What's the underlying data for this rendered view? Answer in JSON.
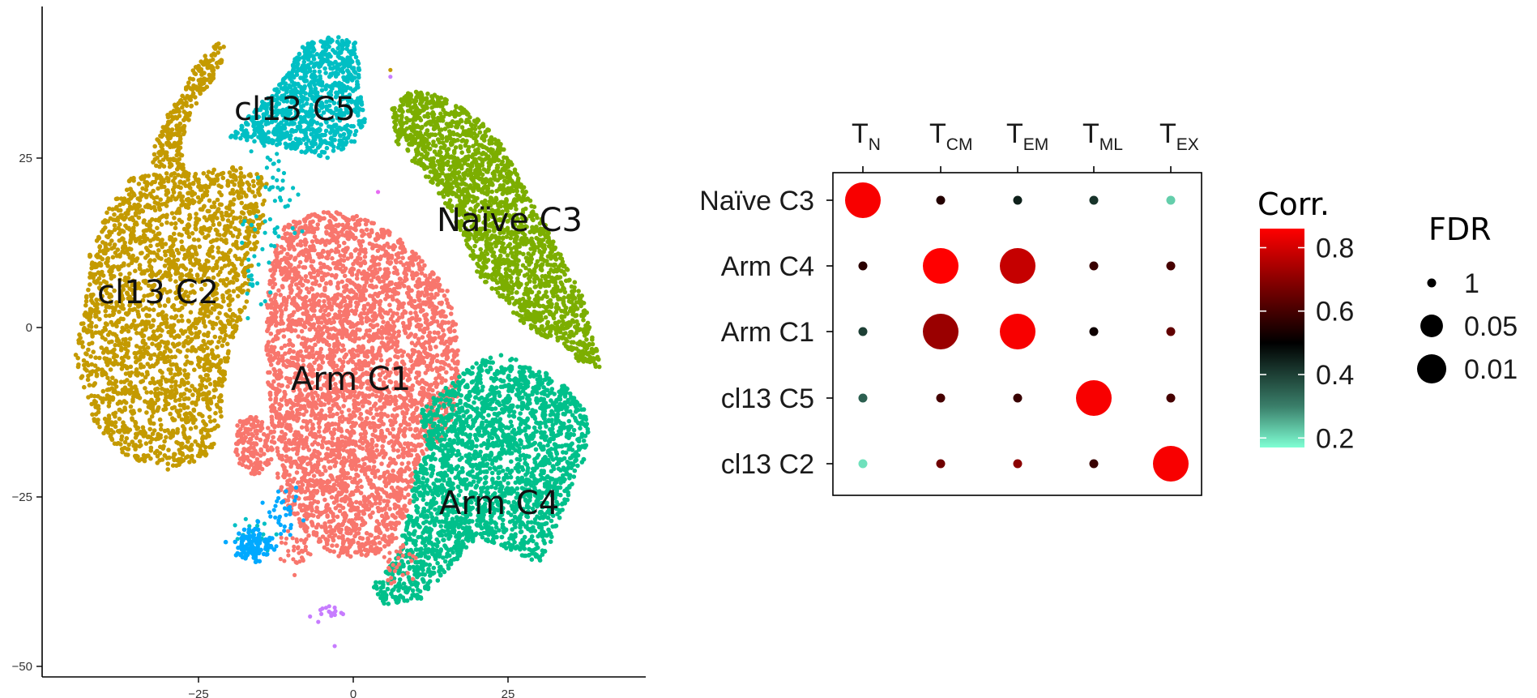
{
  "chart_data": [
    {
      "type": "scatter",
      "subtype": "tsne",
      "title": "",
      "xlabel": "",
      "ylabel": "",
      "xlim": [
        -48,
        47
      ],
      "ylim": [
        -52,
        44
      ],
      "x_ticks": [
        -25,
        0,
        25
      ],
      "y_ticks": [
        25,
        0,
        -25,
        -50
      ],
      "x_tick_labels": [
        "−25",
        "0",
        "25"
      ],
      "y_tick_labels": [
        "25",
        "0",
        "−25",
        "−50"
      ],
      "grid": false,
      "clusters": [
        {
          "name": "cl13 C5",
          "color": "#00BFC4"
        },
        {
          "name": "Naïve C3",
          "color": "#7CAE00"
        },
        {
          "name": "cl13 C2",
          "color": "#C49A00"
        },
        {
          "name": "Arm C1",
          "color": "#F8766D"
        },
        {
          "name": "Arm C4",
          "color": "#00C08B"
        },
        {
          "name": "",
          "color": "#00A9FF"
        },
        {
          "name": "",
          "color": "#C77CFF"
        }
      ]
    },
    {
      "type": "bubble-heatmap",
      "title": "",
      "columns": [
        {
          "main": "T",
          "sub": "N"
        },
        {
          "main": "T",
          "sub": "CM"
        },
        {
          "main": "T",
          "sub": "EM"
        },
        {
          "main": "T",
          "sub": "ML"
        },
        {
          "main": "T",
          "sub": "EX"
        }
      ],
      "rows": [
        "Naïve C3",
        "Arm C4",
        "Arm C1",
        "cl13 C5",
        "cl13 C2"
      ],
      "corr": [
        [
          0.85,
          0.55,
          0.45,
          0.42,
          0.22
        ],
        [
          0.56,
          0.86,
          0.78,
          0.58,
          0.6
        ],
        [
          0.4,
          0.72,
          0.85,
          0.52,
          0.64
        ],
        [
          0.35,
          0.6,
          0.58,
          0.85,
          0.6
        ],
        [
          0.2,
          0.66,
          0.7,
          0.58,
          0.85
        ]
      ],
      "fdr": [
        [
          0.01,
          1,
          1,
          1,
          1
        ],
        [
          1,
          0.01,
          0.01,
          1,
          1
        ],
        [
          1,
          0.01,
          0.01,
          1,
          1
        ],
        [
          1,
          1,
          1,
          0.01,
          1
        ],
        [
          1,
          1,
          1,
          1,
          0.01
        ]
      ],
      "color_scale": {
        "title": "Corr.",
        "range": [
          0.17,
          0.86
        ],
        "ticks": [
          0.8,
          0.6,
          0.4,
          0.2
        ],
        "tick_labels": [
          "0.8",
          "0.6",
          "0.4",
          "0.2"
        ],
        "stops": [
          {
            "value": 0.17,
            "color": "#7FFFD4"
          },
          {
            "value": 0.3,
            "color": "#3A7F6A"
          },
          {
            "value": 0.5,
            "color": "#000000"
          },
          {
            "value": 0.7,
            "color": "#8B0000"
          },
          {
            "value": 0.86,
            "color": "#FF0000"
          }
        ]
      },
      "size_legend": {
        "title": "FDR",
        "items": [
          {
            "label": "1",
            "value": 1
          },
          {
            "label": "0.05",
            "value": 0.05
          },
          {
            "label": "0.01",
            "value": 0.01
          }
        ]
      }
    }
  ],
  "cluster_labels": [
    "cl13 C5",
    "Naïve C3",
    "cl13 C2",
    "Arm C1",
    "Arm C4"
  ]
}
